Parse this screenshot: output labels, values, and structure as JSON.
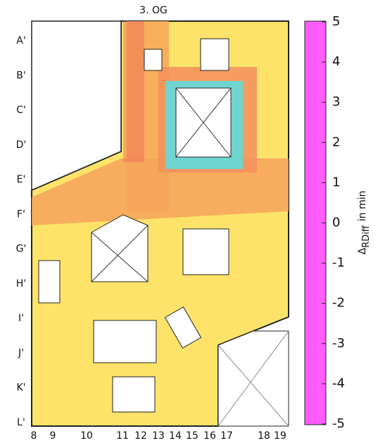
{
  "chart_data": {
    "type": "heatmap",
    "title": "3. OG",
    "row_labels": [
      "A'",
      "B'",
      "C'",
      "D'",
      "E'",
      "F'",
      "G'",
      "H'",
      "I'",
      "J'",
      "K'",
      "L'"
    ],
    "column_labels": [
      8,
      9,
      10,
      11,
      12,
      13,
      14,
      15,
      16,
      17,
      18,
      19
    ],
    "colorbar": {
      "clim": [
        -5,
        5
      ],
      "ticks": [
        5,
        4,
        3,
        2,
        1,
        0,
        -1,
        -2,
        -3,
        -4,
        -5
      ],
      "label_symbol": "Δ",
      "label_subscript": "RDiff",
      "label_unit": "in min",
      "stops": [
        {
          "value": -5,
          "color": "#ff5cff"
        },
        {
          "value": -2.5,
          "color": "#8f90f2"
        },
        {
          "value": 0,
          "color": "#3ee9f0"
        },
        {
          "value": 0,
          "color": "#f2564c"
        },
        {
          "value": 2.5,
          "color": "#f5a040"
        },
        {
          "value": 5,
          "color": "#fff35c"
        }
      ]
    }
  }
}
